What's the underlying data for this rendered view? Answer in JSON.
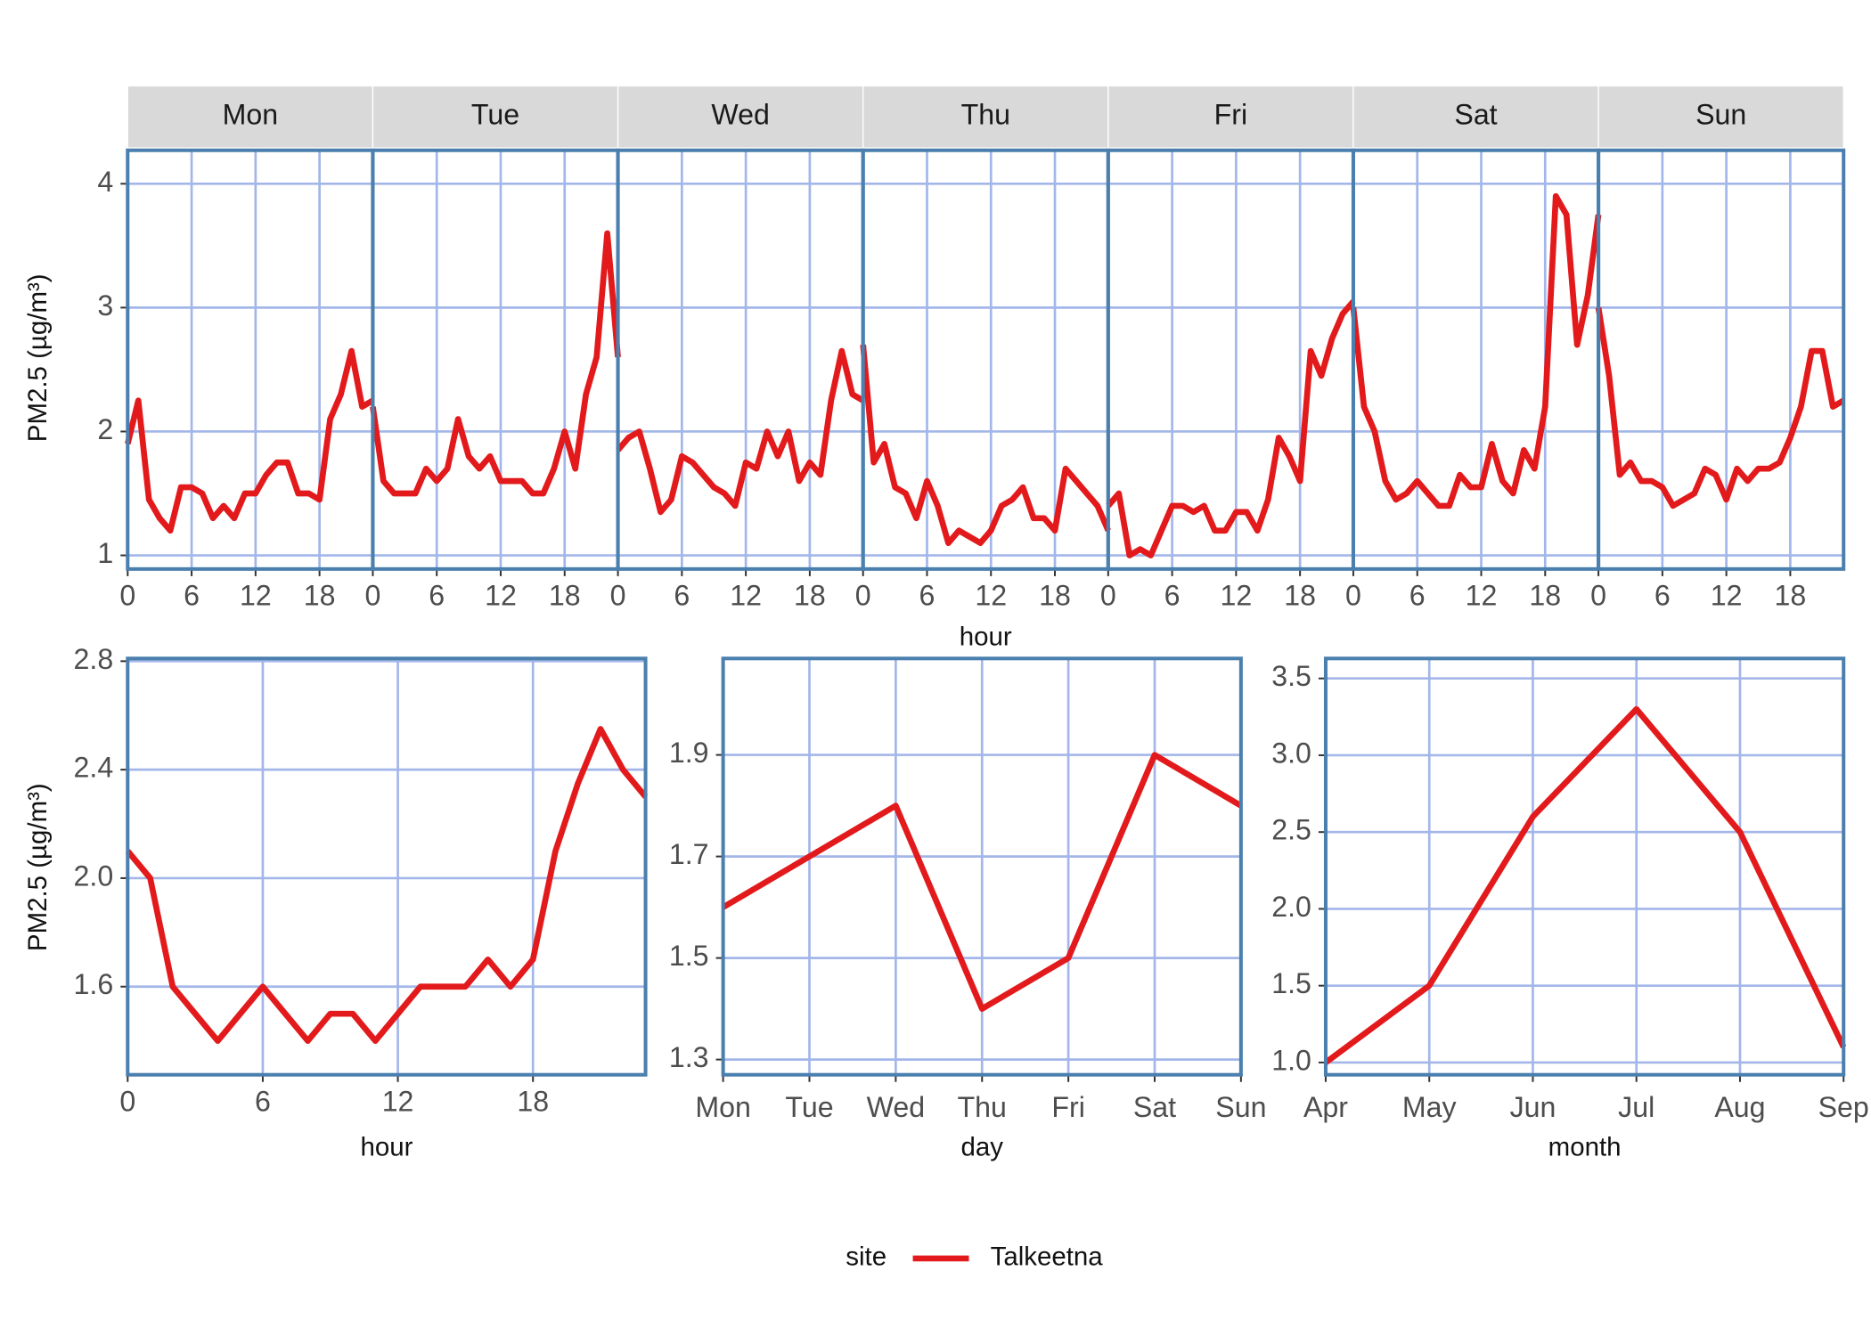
{
  "chart_data": [
    {
      "type": "line",
      "facets": [
        "Mon",
        "Tue",
        "Wed",
        "Thu",
        "Fri",
        "Sat",
        "Sun"
      ],
      "x": [
        0,
        1,
        2,
        3,
        4,
        5,
        6,
        7,
        8,
        9,
        10,
        11,
        12,
        13,
        14,
        15,
        16,
        17,
        18,
        19,
        20,
        21,
        22,
        23
      ],
      "x_label": "hour",
      "y_label": "PM2.5 (µg/m³)",
      "xlim": [
        0,
        23
      ],
      "xticks": [
        0,
        6,
        12,
        18
      ],
      "ylim": [
        0.89,
        4.27
      ],
      "yticks": [
        1,
        2,
        3,
        4
      ],
      "grid": true,
      "legend": {
        "title": "site",
        "position": "bottom"
      },
      "series": [
        {
          "name": "Talkeetna",
          "color": "#e31a1c",
          "values": [
            [
              1.9,
              2.25,
              1.45,
              1.3,
              1.2,
              1.55,
              1.55,
              1.5,
              1.3,
              1.4,
              1.3,
              1.5,
              1.5,
              1.65,
              1.75,
              1.75,
              1.5,
              1.5,
              1.45,
              2.1,
              2.3,
              2.65,
              2.2,
              2.25
            ],
            [
              2.2,
              1.6,
              1.5,
              1.5,
              1.5,
              1.7,
              1.6,
              1.7,
              2.1,
              1.8,
              1.7,
              1.8,
              1.6,
              1.6,
              1.6,
              1.5,
              1.5,
              1.7,
              2.0,
              1.7,
              2.3,
              2.6,
              3.6,
              2.6
            ],
            [
              1.85,
              1.95,
              2.0,
              1.7,
              1.35,
              1.45,
              1.8,
              1.75,
              1.65,
              1.55,
              1.5,
              1.4,
              1.75,
              1.7,
              2.0,
              1.8,
              2.0,
              1.6,
              1.75,
              1.65,
              2.25,
              2.65,
              2.3,
              2.25
            ],
            [
              2.7,
              1.75,
              1.9,
              1.55,
              1.5,
              1.3,
              1.6,
              1.4,
              1.1,
              1.2,
              1.15,
              1.1,
              1.2,
              1.4,
              1.45,
              1.55,
              1.3,
              1.3,
              1.2,
              1.7,
              1.6,
              1.5,
              1.4,
              1.2
            ],
            [
              1.4,
              1.5,
              1.0,
              1.05,
              1.0,
              1.2,
              1.4,
              1.4,
              1.35,
              1.4,
              1.2,
              1.2,
              1.35,
              1.35,
              1.2,
              1.45,
              1.95,
              1.8,
              1.6,
              2.65,
              2.45,
              2.75,
              2.95,
              3.05
            ],
            [
              3.0,
              2.2,
              2.0,
              1.6,
              1.45,
              1.5,
              1.6,
              1.5,
              1.4,
              1.4,
              1.65,
              1.55,
              1.55,
              1.9,
              1.6,
              1.5,
              1.85,
              1.7,
              2.2,
              3.9,
              3.75,
              2.7,
              3.1,
              3.75
            ],
            [
              3.0,
              2.45,
              1.65,
              1.75,
              1.6,
              1.6,
              1.55,
              1.4,
              1.45,
              1.5,
              1.7,
              1.65,
              1.45,
              1.7,
              1.6,
              1.7,
              1.7,
              1.75,
              1.95,
              2.2,
              2.65,
              2.65,
              2.2,
              2.25
            ]
          ]
        }
      ]
    },
    {
      "type": "line",
      "x": [
        0,
        1,
        2,
        3,
        4,
        5,
        6,
        7,
        8,
        9,
        10,
        11,
        12,
        13,
        14,
        15,
        16,
        17,
        18,
        19,
        20,
        21,
        22,
        23
      ],
      "x_label": "hour",
      "y_label": "PM2.5 (µg/m³)",
      "xlim": [
        0,
        23
      ],
      "xticks": [
        0,
        6,
        12,
        18
      ],
      "ylim": [
        1.275,
        2.81
      ],
      "yticks": [
        1.6,
        {
          "value": 2,
          "label": "2.0"
        },
        2.4,
        2.8
      ],
      "grid": true,
      "series": [
        {
          "name": "Talkeetna",
          "color": "#e31a1c",
          "values": [
            2.1,
            2.0,
            1.6,
            1.5,
            1.4,
            1.5,
            1.6,
            1.5,
            1.4,
            1.5,
            1.5,
            1.4,
            1.5,
            1.6,
            1.6,
            1.6,
            1.7,
            1.6,
            1.7,
            2.1,
            2.35,
            2.55,
            2.4,
            2.3
          ]
        }
      ]
    },
    {
      "type": "line",
      "categories": [
        "Mon",
        "Tue",
        "Wed",
        "Thu",
        "Fri",
        "Sat",
        "Sun"
      ],
      "x_label": "day",
      "ylim": [
        1.27,
        2.09
      ],
      "yticks": [
        1.3,
        1.5,
        1.7,
        1.9
      ],
      "grid": true,
      "series": [
        {
          "name": "Talkeetna",
          "color": "#e31a1c",
          "values": [
            1.6,
            1.7,
            1.8,
            1.4,
            1.5,
            1.9,
            1.8
          ]
        }
      ]
    },
    {
      "type": "line",
      "categories": [
        "Apr",
        "May",
        "Jun",
        "Jul",
        "Aug",
        "Sep"
      ],
      "x_label": "month",
      "ylim": [
        0.92,
        3.63
      ],
      "yticks": [
        {
          "value": 1,
          "label": "1.0"
        },
        1.5,
        {
          "value": 2,
          "label": "2.0"
        },
        2.5,
        {
          "value": 3,
          "label": "3.0"
        },
        3.5
      ],
      "grid": true,
      "series": [
        {
          "name": "Talkeetna",
          "color": "#e31a1c",
          "values": [
            1.0,
            1.5,
            2.6,
            3.3,
            2.5,
            1.1
          ]
        }
      ]
    }
  ]
}
